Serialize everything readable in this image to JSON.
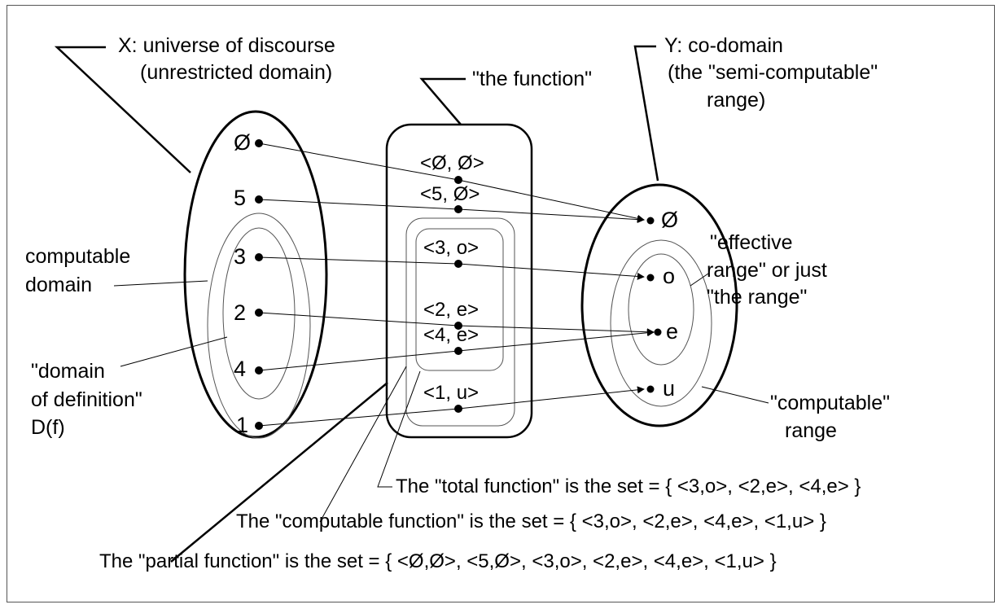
{
  "labels": {
    "x_title_1": "X: universe of discourse",
    "x_title_2": "(unrestricted domain)",
    "function_title": "\"the function\"",
    "y_title_1": "Y: co-domain",
    "y_title_2": "(the \"semi-computable\"",
    "y_title_3": "range)",
    "computable_domain_1": "computable",
    "computable_domain_2": "domain",
    "dod_1": "\"domain",
    "dod_2": "of definition\"",
    "dod_3": "D(f)",
    "effective_range_1": "\"effective",
    "effective_range_2": "range\" or just",
    "effective_range_3": "\"the range\"",
    "computable_range_1": "\"computable\"",
    "computable_range_2": "range"
  },
  "domain_elements": [
    "Ø",
    "5",
    "3",
    "2",
    "4",
    "1"
  ],
  "function_pairs": [
    "<Ø, Ø>",
    "<5, Ø>",
    "<3, o>",
    "<2, e>",
    "<4, e>",
    "<1, u>"
  ],
  "range_elements": [
    "Ø",
    "o",
    "e",
    "u"
  ],
  "statements": {
    "total": "The \"total function\" is the set = { <3,o>, <2,e>, <4,e> }",
    "computable": "The \"computable function\" is the set = { <3,o>, <2,e>, <4,e>, <1,u> }",
    "partial": "The \"partial function\" is the set = { <Ø,Ø>, <5,Ø>, <3,o>, <2,e>, <4,e>, <1,u> }"
  }
}
